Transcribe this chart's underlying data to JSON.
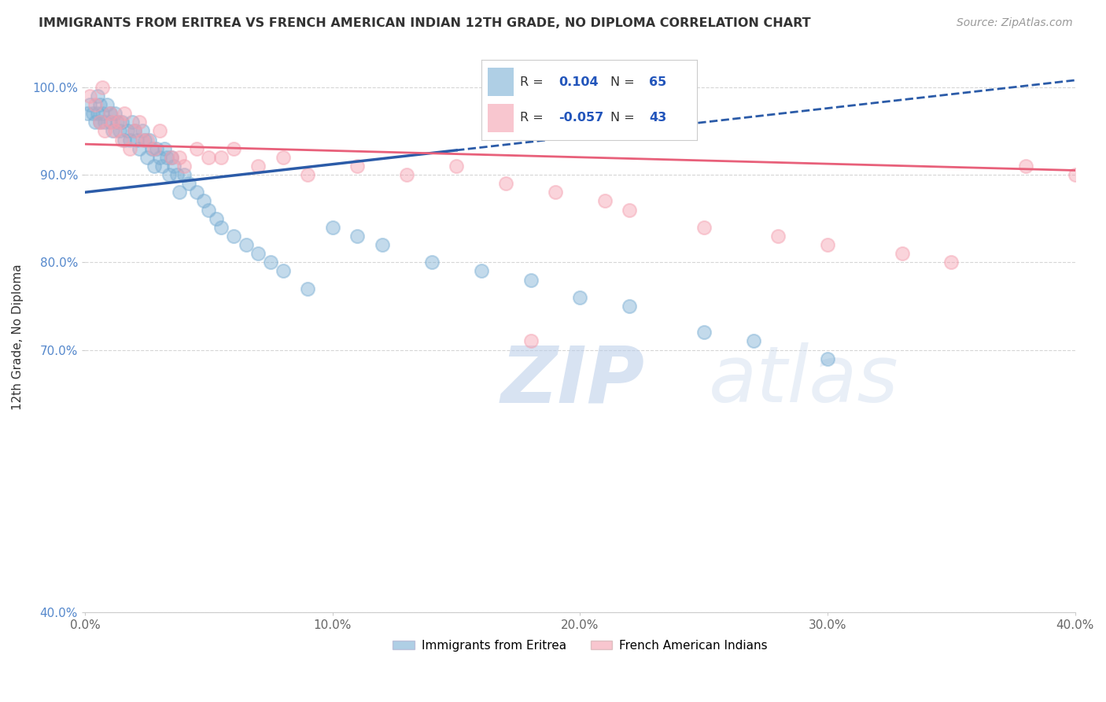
{
  "title": "IMMIGRANTS FROM ERITREA VS FRENCH AMERICAN INDIAN 12TH GRADE, NO DIPLOMA CORRELATION CHART",
  "source": "Source: ZipAtlas.com",
  "ylabel_label": "12th Grade, No Diploma",
  "legend_blue_R": "0.104",
  "legend_blue_N": "65",
  "legend_pink_R": "-0.057",
  "legend_pink_N": "43",
  "legend1": "Immigrants from Eritrea",
  "legend2": "French American Indians",
  "blue_color": "#7BAFD4",
  "pink_color": "#F4A0B0",
  "blue_line_color": "#2B5BA8",
  "pink_line_color": "#E8607A",
  "xlim": [
    0,
    40
  ],
  "ylim": [
    40,
    103
  ],
  "xticks": [
    0,
    10,
    20,
    30,
    40
  ],
  "yticks": [
    40,
    70,
    80,
    90,
    100
  ],
  "ytick_labels": [
    "40.0%",
    "70.0%",
    "80.0%",
    "90.0%",
    "100.0%"
  ],
  "xtick_labels": [
    "0.0%",
    "10.0%",
    "20.0%",
    "30.0%",
    "40.0%"
  ],
  "watermark_zip": "ZIP",
  "watermark_atlas": "atlas",
  "background_color": "#FFFFFF",
  "grid_color": "#CCCCCC",
  "blue_x": [
    0.1,
    0.2,
    0.3,
    0.4,
    0.5,
    0.5,
    0.6,
    0.6,
    0.7,
    0.8,
    0.9,
    1.0,
    1.0,
    1.1,
    1.2,
    1.3,
    1.4,
    1.5,
    1.6,
    1.7,
    1.8,
    1.9,
    2.0,
    2.1,
    2.2,
    2.3,
    2.4,
    2.5,
    2.6,
    2.7,
    2.8,
    2.9,
    3.0,
    3.1,
    3.2,
    3.3,
    3.4,
    3.5,
    3.6,
    3.7,
    3.8,
    4.0,
    4.2,
    4.5,
    4.8,
    5.0,
    5.3,
    5.5,
    6.0,
    6.5,
    7.0,
    7.5,
    8.0,
    9.0,
    10.0,
    11.0,
    12.0,
    14.0,
    16.0,
    18.0,
    20.0,
    22.0,
    25.0,
    27.0,
    30.0
  ],
  "blue_y": [
    97,
    98,
    97,
    96,
    99,
    97,
    98,
    96,
    97,
    96,
    98,
    97,
    96,
    95,
    97,
    96,
    95,
    96,
    94,
    95,
    94,
    96,
    95,
    94,
    93,
    95,
    94,
    92,
    94,
    93,
    91,
    93,
    92,
    91,
    93,
    92,
    90,
    92,
    91,
    90,
    88,
    90,
    89,
    88,
    87,
    86,
    85,
    84,
    83,
    82,
    81,
    80,
    79,
    77,
    84,
    83,
    82,
    80,
    79,
    78,
    76,
    75,
    72,
    71,
    69
  ],
  "pink_x": [
    0.2,
    0.4,
    0.6,
    0.7,
    0.8,
    1.0,
    1.1,
    1.2,
    1.4,
    1.5,
    1.6,
    1.8,
    2.0,
    2.2,
    2.5,
    2.8,
    3.0,
    3.5,
    4.0,
    4.5,
    5.0,
    6.0,
    7.0,
    8.0,
    9.0,
    11.0,
    13.0,
    15.0,
    17.0,
    19.0,
    21.0,
    22.0,
    25.0,
    28.0,
    30.0,
    33.0,
    35.0,
    38.0,
    40.0,
    2.3,
    3.8,
    5.5,
    18.0
  ],
  "pink_y": [
    99,
    98,
    96,
    100,
    95,
    97,
    96,
    95,
    96,
    94,
    97,
    93,
    95,
    96,
    94,
    93,
    95,
    92,
    91,
    93,
    92,
    93,
    91,
    92,
    90,
    91,
    90,
    91,
    89,
    88,
    87,
    86,
    84,
    83,
    82,
    81,
    80,
    91,
    90,
    94,
    92,
    92,
    71
  ]
}
